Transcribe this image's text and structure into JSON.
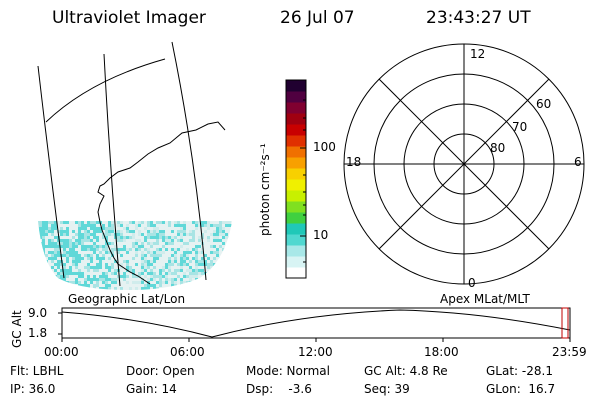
{
  "header": {
    "instrument": "Ultraviolet Imager",
    "date": "26 Jul 07",
    "time": "23:43:27 UT"
  },
  "colorbar": {
    "unit_label": "photon cm⁻²s⁻¹",
    "ticks": [
      "100",
      "10"
    ],
    "colors": [
      "#ffffff",
      "#d8f4f4",
      "#a8e8e8",
      "#50d8d0",
      "#20c8b8",
      "#40d040",
      "#80e020",
      "#c8f000",
      "#f0f000",
      "#f8d000",
      "#f8a000",
      "#f07000",
      "#e03000",
      "#c80000",
      "#a00010",
      "#800030",
      "#500040",
      "#200030"
    ]
  },
  "map": {
    "label": "Geographic Lat/Lon",
    "aurora_color": "#60d8d8"
  },
  "polar": {
    "label": "Apex MLat/MLT",
    "mlt_labels": {
      "top": "12",
      "left": "18",
      "right": "6",
      "bottom": "0"
    },
    "lat_labels": [
      "60",
      "70",
      "80"
    ]
  },
  "altitude_plot": {
    "axis_label": "GC Alt",
    "y_ticks": [
      "9.0",
      "1.8"
    ],
    "x_ticks": [
      "00:00",
      "06:00",
      "12:00",
      "18:00",
      "23:59"
    ],
    "marker_color": "#c00000"
  },
  "footer": {
    "filter": "Flt: LBHL",
    "ip": "IP: 36.0",
    "door": "Door: Open",
    "gain": "Gain: 14",
    "mode": "Mode: Normal",
    "dsp": "Dsp:    -3.6",
    "gc_alt": "GC Alt: 4.8 Re",
    "seq": "Seq: 39",
    "glat": "GLat: -28.1",
    "glon": "GLon:  16.7"
  }
}
